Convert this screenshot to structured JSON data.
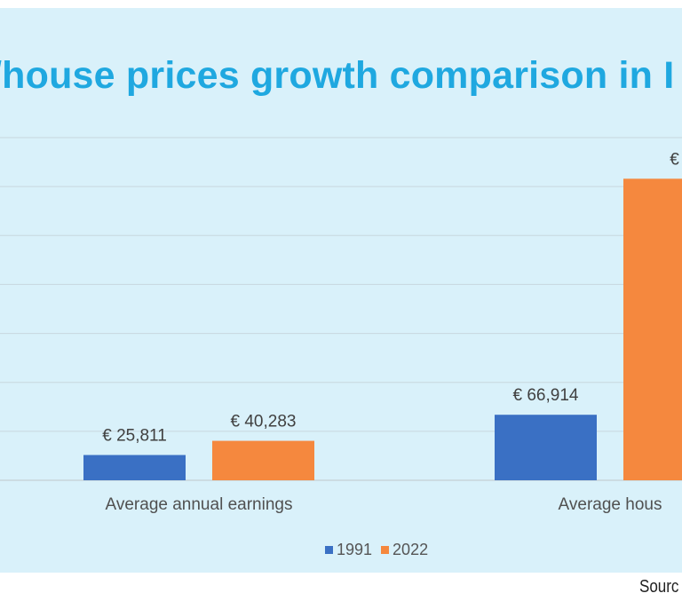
{
  "title": "/house prices growth comparison in I",
  "source_text": "Sourc",
  "colors": {
    "background": "#d9f1fa",
    "title": "#1fa8e0",
    "grid": "#c8d7de"
  },
  "chart_data": {
    "type": "bar",
    "title": "/house prices growth comparison in I",
    "categories": [
      "Average annual earnings",
      "Average hous"
    ],
    "series": [
      {
        "name": "1991",
        "color": "#3a70c4",
        "values": [
          25811,
          66914
        ],
        "labels": [
          "€ 25,811",
          "€ 66,914"
        ]
      },
      {
        "name": "2022",
        "color": "#f5883e",
        "values": [
          40283,
          308000
        ],
        "labels": [
          "€ 40,283",
          "€"
        ]
      }
    ],
    "ylim": [
      0,
      350000
    ],
    "grid": true,
    "legend_position": "bottom"
  }
}
